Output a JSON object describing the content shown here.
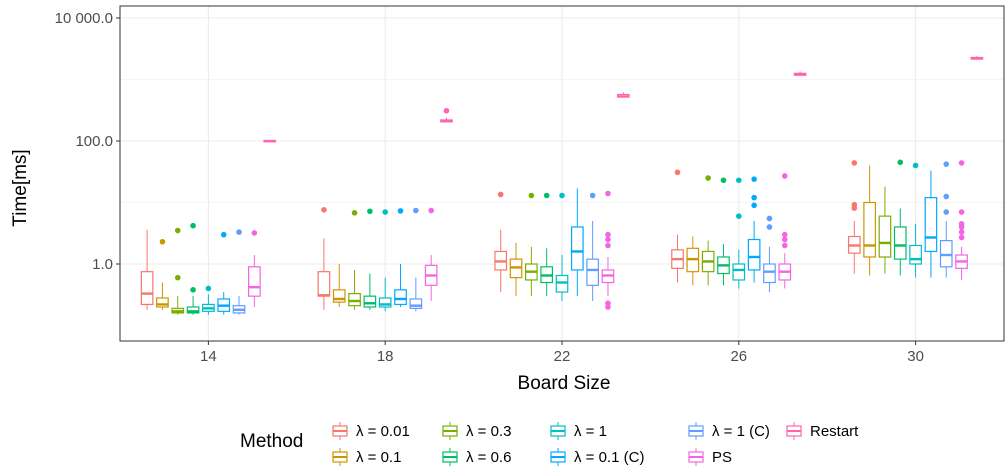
{
  "chart_data": {
    "type": "boxplot",
    "xlabel": "Board Size",
    "ylabel": "Time[ms]",
    "y_scale": "log10",
    "ylim": [
      0.13,
      15000
    ],
    "y_ticks": [
      1.0,
      100.0,
      10000.0
    ],
    "y_tick_labels": [
      "1.0",
      "100.0",
      "10 000.0"
    ],
    "grid": true,
    "categories": [
      "14",
      "18",
      "22",
      "26",
      "30"
    ],
    "legend": {
      "title": "Method",
      "position": "bottom"
    },
    "series": [
      {
        "name": "λ = 0.01",
        "color": "#F8766D",
        "boxes": [
          {
            "min": 0.18,
            "q1": 0.22,
            "median": 0.33,
            "q3": 0.75,
            "max": 3.6,
            "outliers": []
          },
          {
            "min": 0.18,
            "q1": 0.3,
            "median": 0.31,
            "q3": 0.75,
            "max": 2.6,
            "outliers": [
              7.6
            ]
          },
          {
            "min": 0.35,
            "q1": 0.8,
            "median": 1.1,
            "q3": 1.6,
            "max": 3.6,
            "outliers": [
              13.5
            ]
          },
          {
            "min": 0.5,
            "q1": 0.85,
            "median": 1.2,
            "q3": 1.7,
            "max": 3.0,
            "outliers": [
              31
            ]
          },
          {
            "min": 0.7,
            "q1": 1.5,
            "median": 2.0,
            "q3": 2.8,
            "max": 5.0,
            "outliers": [
              8.1,
              9.2,
              44
            ]
          }
        ]
      },
      {
        "name": "λ = 0.1",
        "color": "#CD9600",
        "boxes": [
          {
            "min": 0.18,
            "q1": 0.2,
            "median": 0.22,
            "q3": 0.28,
            "max": 0.5,
            "outliers": [
              2.3
            ]
          },
          {
            "min": 0.2,
            "q1": 0.24,
            "median": 0.27,
            "q3": 0.38,
            "max": 1.0,
            "outliers": []
          },
          {
            "min": 0.3,
            "q1": 0.6,
            "median": 0.88,
            "q3": 1.2,
            "max": 2.2,
            "outliers": []
          },
          {
            "min": 0.45,
            "q1": 0.75,
            "median": 1.2,
            "q3": 1.8,
            "max": 2.8,
            "outliers": []
          },
          {
            "min": 0.65,
            "q1": 1.3,
            "median": 2.0,
            "q3": 10.0,
            "max": 40,
            "outliers": []
          }
        ]
      },
      {
        "name": "λ = 0.3",
        "color": "#7CAE00",
        "boxes": [
          {
            "min": 0.15,
            "q1": 0.16,
            "median": 0.17,
            "q3": 0.19,
            "max": 0.3,
            "outliers": [
              0.6,
              3.5
            ]
          },
          {
            "min": 0.18,
            "q1": 0.21,
            "median": 0.25,
            "q3": 0.33,
            "max": 0.8,
            "outliers": [
              6.8
            ]
          },
          {
            "min": 0.3,
            "q1": 0.55,
            "median": 0.75,
            "q3": 1.0,
            "max": 1.9,
            "outliers": [
              13
            ]
          },
          {
            "min": 0.45,
            "q1": 0.75,
            "median": 1.1,
            "q3": 1.6,
            "max": 2.4,
            "outliers": [
              25
            ]
          },
          {
            "min": 0.7,
            "q1": 1.3,
            "median": 2.2,
            "q3": 6.0,
            "max": 18,
            "outliers": []
          }
        ]
      },
      {
        "name": "λ = 0.6",
        "color": "#00BE67",
        "boxes": [
          {
            "min": 0.15,
            "q1": 0.16,
            "median": 0.17,
            "q3": 0.2,
            "max": 0.3,
            "outliers": [
              0.38,
              4.2
            ]
          },
          {
            "min": 0.18,
            "q1": 0.2,
            "median": 0.23,
            "q3": 0.3,
            "max": 0.7,
            "outliers": [
              7.2
            ]
          },
          {
            "min": 0.3,
            "q1": 0.5,
            "median": 0.65,
            "q3": 0.9,
            "max": 1.8,
            "outliers": [
              13
            ]
          },
          {
            "min": 0.45,
            "q1": 0.7,
            "median": 0.95,
            "q3": 1.3,
            "max": 2.1,
            "outliers": [
              23
            ]
          },
          {
            "min": 0.65,
            "q1": 1.2,
            "median": 2.0,
            "q3": 4.0,
            "max": 8.0,
            "outliers": [
              45
            ]
          }
        ]
      },
      {
        "name": "λ = 1",
        "color": "#00BFC4",
        "boxes": [
          {
            "min": 0.15,
            "q1": 0.17,
            "median": 0.19,
            "q3": 0.22,
            "max": 0.32,
            "outliers": [
              0.4
            ]
          },
          {
            "min": 0.17,
            "q1": 0.2,
            "median": 0.22,
            "q3": 0.28,
            "max": 0.6,
            "outliers": [
              7.0
            ]
          },
          {
            "min": 0.25,
            "q1": 0.35,
            "median": 0.5,
            "q3": 0.65,
            "max": 1.4,
            "outliers": [
              13
            ]
          },
          {
            "min": 0.4,
            "q1": 0.55,
            "median": 0.8,
            "q3": 1.0,
            "max": 1.7,
            "outliers": [
              6.0,
              23
            ]
          },
          {
            "min": 0.6,
            "q1": 1.0,
            "median": 1.2,
            "q3": 2.0,
            "max": 4.5,
            "outliers": [
              40
            ]
          }
        ]
      },
      {
        "name": "λ = 0.1 (C)",
        "color": "#00A9FF",
        "boxes": [
          {
            "min": 0.15,
            "q1": 0.17,
            "median": 0.21,
            "q3": 0.27,
            "max": 0.35,
            "outliers": [
              3.0
            ]
          },
          {
            "min": 0.2,
            "q1": 0.22,
            "median": 0.27,
            "q3": 0.38,
            "max": 1.0,
            "outliers": [
              7.3
            ]
          },
          {
            "min": 0.3,
            "q1": 0.8,
            "median": 1.6,
            "q3": 4.0,
            "max": 17,
            "outliers": []
          },
          {
            "min": 0.5,
            "q1": 0.8,
            "median": 1.3,
            "q3": 2.5,
            "max": 5.0,
            "outliers": [
              9.0,
              12,
              24
            ]
          },
          {
            "min": 0.6,
            "q1": 1.6,
            "median": 2.7,
            "q3": 12.0,
            "max": 33,
            "outliers": []
          }
        ]
      },
      {
        "name": "λ = 1 (C)",
        "color": "#619CFF",
        "boxes": [
          {
            "min": 0.15,
            "q1": 0.16,
            "median": 0.18,
            "q3": 0.21,
            "max": 0.3,
            "outliers": [
              3.3
            ]
          },
          {
            "min": 0.17,
            "q1": 0.19,
            "median": 0.21,
            "q3": 0.27,
            "max": 0.6,
            "outliers": [
              7.4
            ]
          },
          {
            "min": 0.25,
            "q1": 0.45,
            "median": 0.8,
            "q3": 1.2,
            "max": 5.0,
            "outliers": [
              13
            ]
          },
          {
            "min": 0.35,
            "q1": 0.5,
            "median": 0.75,
            "q3": 1.0,
            "max": 1.9,
            "outliers": [
              4.0,
              5.5
            ]
          },
          {
            "min": 0.6,
            "q1": 0.9,
            "median": 1.4,
            "q3": 2.4,
            "max": 5.0,
            "outliers": [
              7.0,
              12.5,
              42
            ]
          }
        ]
      },
      {
        "name": "PS",
        "color": "#F564E3",
        "boxes": [
          {
            "min": 0.2,
            "q1": 0.3,
            "median": 0.42,
            "q3": 0.9,
            "max": 1.4,
            "outliers": [
              3.2
            ]
          },
          {
            "min": 0.25,
            "q1": 0.45,
            "median": 0.65,
            "q3": 0.95,
            "max": 1.4,
            "outliers": [
              7.4
            ]
          },
          {
            "min": 0.3,
            "q1": 0.5,
            "median": 0.65,
            "q3": 0.8,
            "max": 1.3,
            "outliers": [
              0.2,
              0.23,
              2.0,
              2.5,
              3.0,
              14
            ]
          },
          {
            "min": 0.4,
            "q1": 0.55,
            "median": 0.75,
            "q3": 1.0,
            "max": 1.5,
            "outliers": [
              2.0,
              2.5,
              3.0,
              27
            ]
          },
          {
            "min": 0.55,
            "q1": 0.85,
            "median": 1.1,
            "q3": 1.4,
            "max": 1.9,
            "outliers": [
              2.7,
              3.3,
              4.0,
              4.5,
              7.0,
              44
            ]
          }
        ]
      },
      {
        "name": "Restart",
        "color": "#FF64B0",
        "boxes": [
          {
            "min": 97,
            "q1": 99,
            "median": 100,
            "q3": 101,
            "max": 103,
            "outliers": []
          },
          {
            "min": 200,
            "q1": 205,
            "median": 210,
            "q3": 220,
            "max": 240,
            "outliers": [
              310
            ]
          },
          {
            "min": 510,
            "q1": 520,
            "median": 530,
            "q3": 570,
            "max": 620,
            "outliers": []
          },
          {
            "min": 1150,
            "q1": 1180,
            "median": 1200,
            "q3": 1260,
            "max": 1350,
            "outliers": []
          },
          {
            "min": 2100,
            "q1": 2150,
            "median": 2200,
            "q3": 2280,
            "max": 2400,
            "outliers": []
          }
        ]
      }
    ]
  }
}
